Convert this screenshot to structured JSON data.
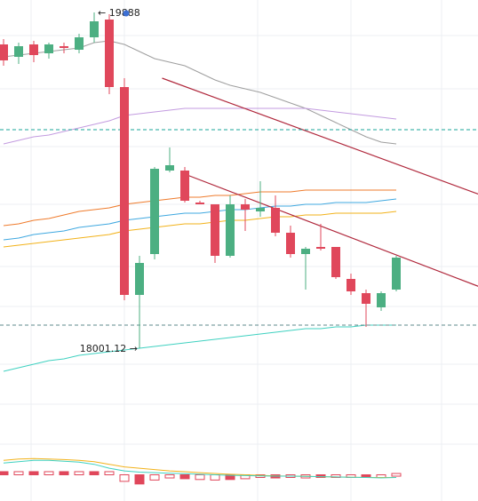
{
  "chart_data": {
    "type": "candlestick",
    "title": "",
    "xlabel": "",
    "ylabel": "",
    "grid": true,
    "ylim": [
      17560,
      19960
    ],
    "colors": {
      "up": "#4caf82",
      "down": "#e0475b",
      "sma_short": "#9e9e9e",
      "sma_purple": "#c39be0",
      "ema_orange": "#ef7b2c",
      "ema_blue": "#3fa8e0",
      "ema_yellow": "#f2b21a",
      "ema_teal": "#3fd1c0",
      "channel": "#b0283c",
      "dashed_current": "#1aa59a",
      "dashed_lower": "#5f8a8b"
    },
    "annotations": {
      "high_label": "19888",
      "low_label": "18001.12"
    },
    "candles": [
      {
        "o": 19710,
        "h": 19740,
        "l": 19590,
        "c": 19620
      },
      {
        "o": 19640,
        "h": 19720,
        "l": 19600,
        "c": 19700
      },
      {
        "o": 19710,
        "h": 19730,
        "l": 19610,
        "c": 19650
      },
      {
        "o": 19660,
        "h": 19720,
        "l": 19630,
        "c": 19710
      },
      {
        "o": 19700,
        "h": 19720,
        "l": 19660,
        "c": 19690
      },
      {
        "o": 19680,
        "h": 19770,
        "l": 19660,
        "c": 19750
      },
      {
        "o": 19750,
        "h": 19890,
        "l": 19720,
        "c": 19840
      },
      {
        "o": 19850,
        "h": 19880,
        "l": 19430,
        "c": 19470
      },
      {
        "o": 19470,
        "h": 19520,
        "l": 18270,
        "c": 18300
      },
      {
        "o": 18300,
        "h": 18520,
        "l": 18000,
        "c": 18480
      },
      {
        "o": 18530,
        "h": 19020,
        "l": 18500,
        "c": 19010
      },
      {
        "o": 19000,
        "h": 19130,
        "l": 18990,
        "c": 19030
      },
      {
        "o": 19000,
        "h": 19020,
        "l": 18820,
        "c": 18830
      },
      {
        "o": 18820,
        "h": 18830,
        "l": 18810,
        "c": 18810
      },
      {
        "o": 18810,
        "h": 18810,
        "l": 18480,
        "c": 18520
      },
      {
        "o": 18520,
        "h": 18860,
        "l": 18510,
        "c": 18810
      },
      {
        "o": 18810,
        "h": 18840,
        "l": 18660,
        "c": 18780
      },
      {
        "o": 18770,
        "h": 18940,
        "l": 18740,
        "c": 18790
      },
      {
        "o": 18790,
        "h": 18860,
        "l": 18630,
        "c": 18650
      },
      {
        "o": 18650,
        "h": 18690,
        "l": 18510,
        "c": 18530
      },
      {
        "o": 18530,
        "h": 18570,
        "l": 18330,
        "c": 18560
      },
      {
        "o": 18570,
        "h": 18700,
        "l": 18550,
        "c": 18560
      },
      {
        "o": 18570,
        "h": 18570,
        "l": 18390,
        "c": 18400
      },
      {
        "o": 18390,
        "h": 18420,
        "l": 18300,
        "c": 18320
      },
      {
        "o": 18310,
        "h": 18330,
        "l": 18120,
        "c": 18250
      },
      {
        "o": 18230,
        "h": 18320,
        "l": 18210,
        "c": 18310
      },
      {
        "o": 18330,
        "h": 18520,
        "l": 18320,
        "c": 18510
      }
    ],
    "series": [
      {
        "key": "sma_short",
        "values": [
          19640,
          19650,
          19660,
          19670,
          19680,
          19690,
          19720,
          19730,
          19710,
          19670,
          19630,
          19610,
          19590,
          19550,
          19510,
          19480,
          19460,
          19440,
          19410,
          19380,
          19350,
          19310,
          19270,
          19230,
          19190,
          19160,
          19150
        ]
      },
      {
        "key": "sma_purple",
        "values": [
          19150,
          19170,
          19190,
          19200,
          19220,
          19240,
          19260,
          19280,
          19310,
          19320,
          19330,
          19340,
          19350,
          19350,
          19350,
          19350,
          19350,
          19350,
          19350,
          19350,
          19350,
          19340,
          19330,
          19320,
          19310,
          19300,
          19290
        ]
      },
      {
        "key": "ema_orange",
        "values": [
          18690,
          18700,
          18720,
          18730,
          18750,
          18770,
          18780,
          18790,
          18810,
          18820,
          18830,
          18840,
          18850,
          18850,
          18860,
          18860,
          18870,
          18880,
          18880,
          18880,
          18890,
          18890,
          18890,
          18890,
          18890,
          18890,
          18890
        ]
      },
      {
        "key": "ema_blue",
        "values": [
          18610,
          18620,
          18640,
          18650,
          18660,
          18680,
          18690,
          18700,
          18720,
          18730,
          18740,
          18750,
          18760,
          18760,
          18770,
          18780,
          18780,
          18790,
          18800,
          18800,
          18810,
          18810,
          18820,
          18820,
          18820,
          18830,
          18840
        ]
      },
      {
        "key": "ema_yellow",
        "values": [
          18570,
          18580,
          18590,
          18600,
          18610,
          18620,
          18630,
          18640,
          18660,
          18670,
          18680,
          18690,
          18700,
          18700,
          18710,
          18720,
          18720,
          18730,
          18740,
          18740,
          18750,
          18750,
          18760,
          18760,
          18760,
          18760,
          18770
        ]
      },
      {
        "key": "ema_teal",
        "values": [
          17870,
          17890,
          17910,
          17930,
          17940,
          17960,
          17970,
          17980,
          17990,
          18000,
          18010,
          18020,
          18030,
          18040,
          18050,
          18060,
          18070,
          18080,
          18090,
          18100,
          18110,
          18110,
          18120,
          18120,
          18130,
          18130,
          18130
        ]
      }
    ],
    "channel_lines": [
      {
        "x1": 10.5,
        "y1": 19520,
        "x2": 32,
        "y2": 18850
      },
      {
        "x1": 12,
        "y1": 18980,
        "x2": 32,
        "y2": 18330
      }
    ],
    "price_levels": [
      {
        "key": "dashed_current",
        "value": 19230
      },
      {
        "key": "dashed_lower",
        "value": 18130
      }
    ],
    "oscillator": {
      "ylim": [
        -1,
        1
      ],
      "bars": [
        0.12,
        0.12,
        0.12,
        0.12,
        0.12,
        0.12,
        0.12,
        0.12,
        -0.25,
        -0.35,
        -0.2,
        -0.12,
        -0.15,
        -0.18,
        -0.2,
        -0.18,
        -0.15,
        -0.1,
        -0.12,
        -0.1,
        -0.12,
        -0.1,
        -0.08,
        -0.06,
        -0.04,
        -0.02,
        0.05
      ],
      "signal_a": [
        0.55,
        0.6,
        0.62,
        0.6,
        0.58,
        0.55,
        0.5,
        0.4,
        0.3,
        0.25,
        0.2,
        0.15,
        0.12,
        0.08,
        0.05,
        0.02,
        0.0,
        -0.02,
        -0.04,
        -0.05,
        -0.06,
        -0.07,
        -0.08,
        -0.09,
        -0.1,
        -0.1,
        -0.1
      ],
      "signal_b": [
        0.45,
        0.5,
        0.55,
        0.55,
        0.52,
        0.48,
        0.4,
        0.25,
        0.15,
        0.1,
        0.08,
        0.06,
        0.04,
        0.02,
        0.0,
        -0.02,
        -0.03,
        -0.04,
        -0.05,
        -0.05,
        -0.06,
        -0.07,
        -0.08,
        -0.09,
        -0.1,
        -0.12,
        -0.1
      ]
    }
  }
}
